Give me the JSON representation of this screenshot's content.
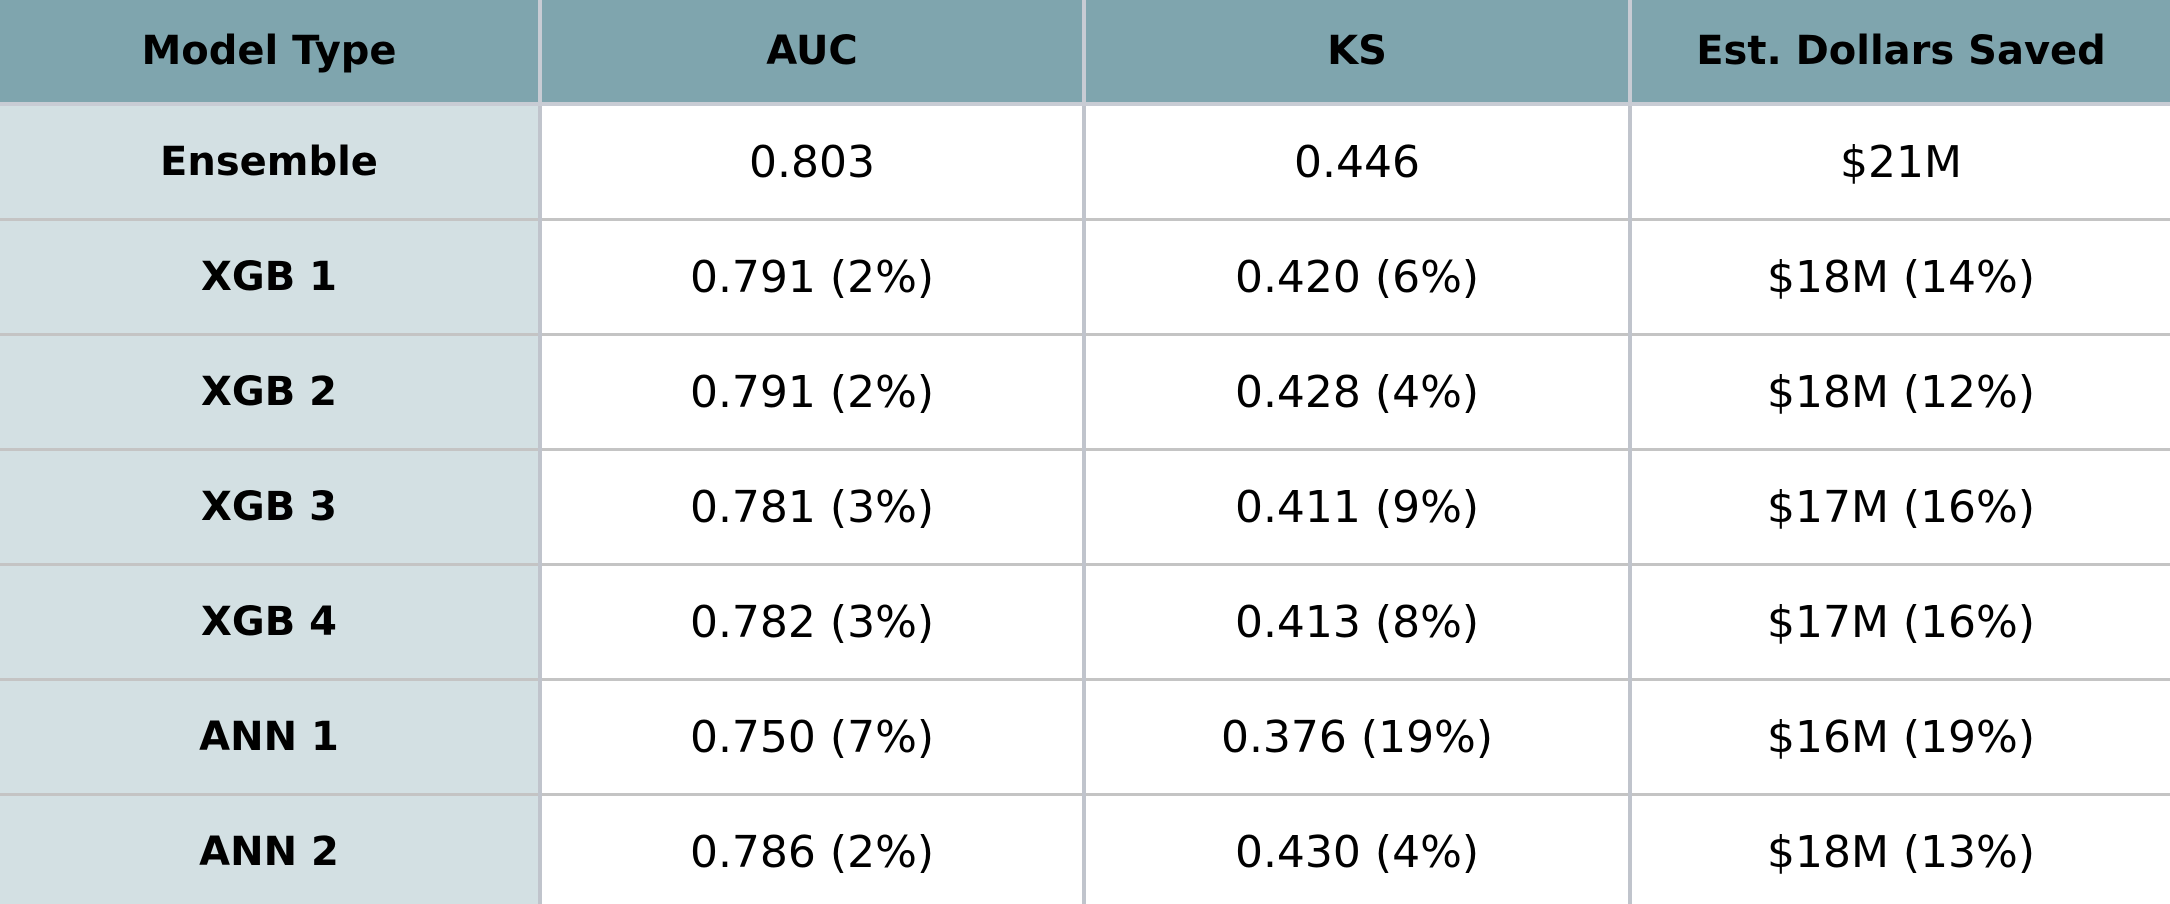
{
  "table": {
    "header": [
      "Model Type",
      "AUC",
      "KS",
      "Est. Dollars Saved"
    ],
    "rows": [
      [
        "Ensemble",
        "0.803",
        "0.446",
        "$21M"
      ],
      [
        "XGB 1",
        "0.791 (2%)",
        "0.420 (6%)",
        "$18M (14%)"
      ],
      [
        "XGB 2",
        "0.791 (2%)",
        "0.428 (4%)",
        "$18M (12%)"
      ],
      [
        "XGB 3",
        "0.781 (3%)",
        "0.411 (9%)",
        "$17M (16%)"
      ],
      [
        "XGB 4",
        "0.782 (3%)",
        "0.413 (8%)",
        "$17M (16%)"
      ],
      [
        "ANN 1",
        "0.750 (7%)",
        "0.376 (19%)",
        "$16M (19%)"
      ],
      [
        "ANN 2",
        "0.786 (2%)",
        "0.430 (4%)",
        "$18M (13%)"
      ]
    ]
  }
}
